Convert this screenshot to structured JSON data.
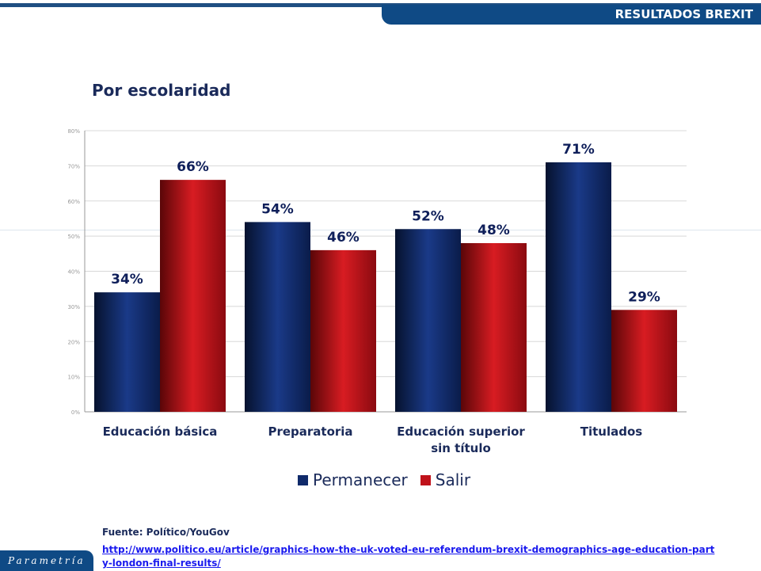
{
  "header": {
    "banner": "RESULTADOS BREXIT"
  },
  "subtitle": "Por escolaridad",
  "chart_data": {
    "type": "bar",
    "categories": [
      "Educación básica",
      "Preparatoria",
      "Educación superior sin título",
      "Titulados"
    ],
    "series": [
      {
        "name": "Permanecer",
        "values": [
          34,
          54,
          52,
          71
        ],
        "color": "#0f2a6a",
        "labels": [
          "34%",
          "54%",
          "52%",
          "71%"
        ]
      },
      {
        "name": "Salir",
        "values": [
          66,
          46,
          48,
          29
        ],
        "color": "#c0121a",
        "labels": [
          "66%",
          "46%",
          "48%",
          "29%"
        ]
      }
    ],
    "ylim": [
      0,
      80
    ],
    "yticks": [
      "0%",
      "10%",
      "20%",
      "30%",
      "40%",
      "50%",
      "60%",
      "70%",
      "80%"
    ],
    "grid": true,
    "legend": "bottom"
  },
  "footer": {
    "source": "Fuente: Político/YouGov",
    "link": "http://www.politico.eu/article/graphics-how-the-uk-voted-eu-referendum-brexit-demographics-age-education-party-london-final-results/",
    "logo": "Parametría"
  }
}
